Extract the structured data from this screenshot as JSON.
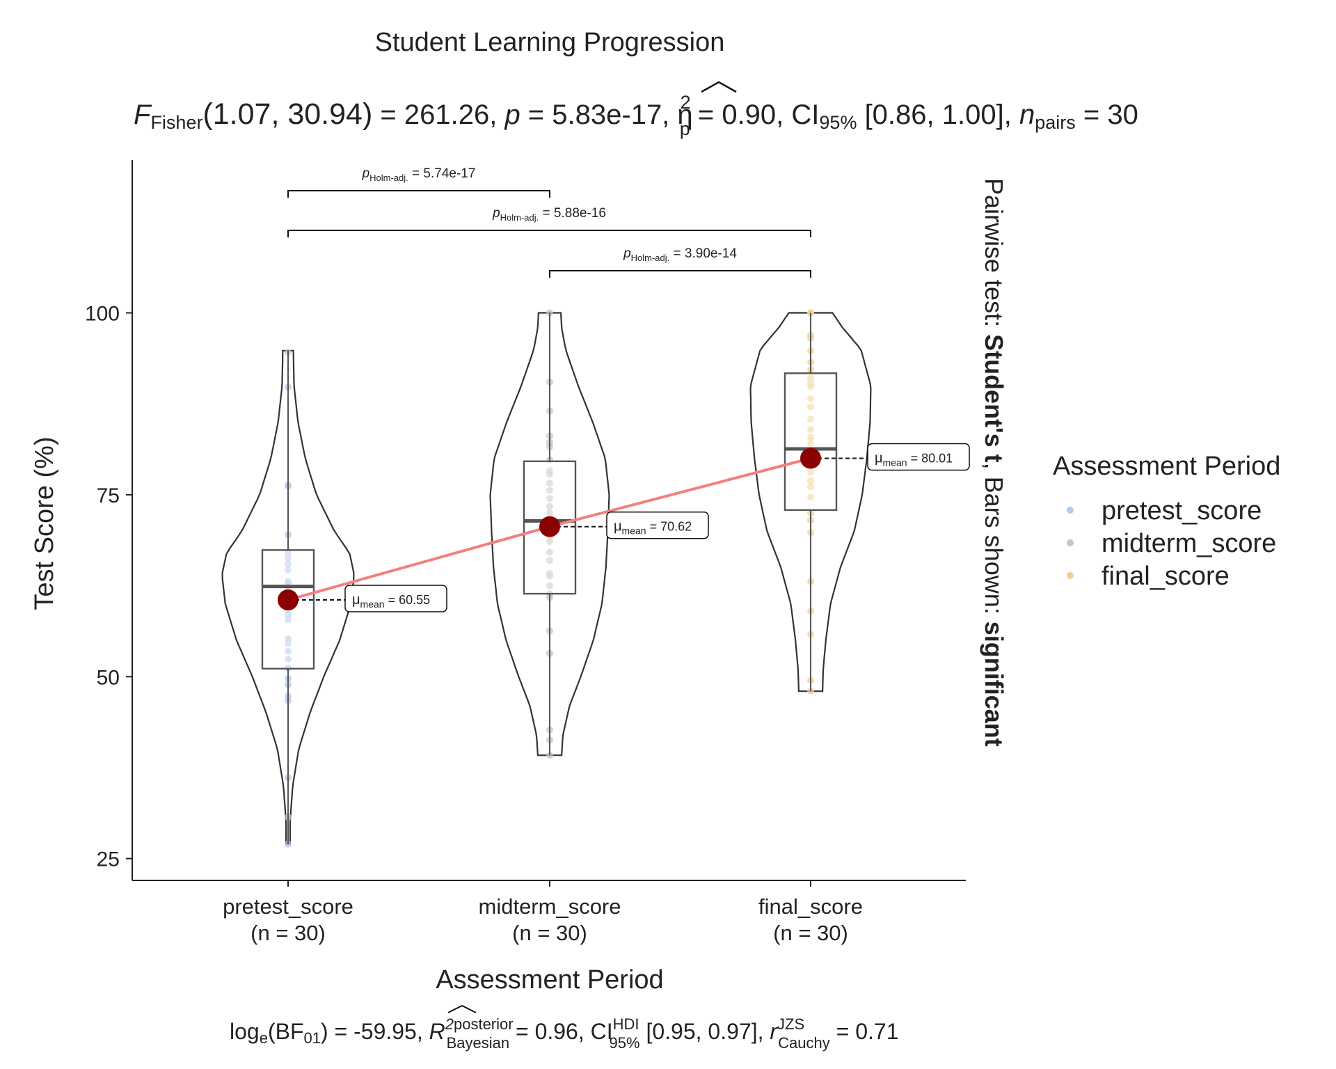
{
  "chart_data": {
    "type": "violin-box",
    "title": "Student Learning Progression",
    "subtitle": {
      "stat_label": "F",
      "stat_sub": "Fisher",
      "df": "(1.07, 30.94)",
      "stat_value": " = 261.26, ",
      "p_label": "p",
      "p_value": " = 5.83e-17, ",
      "eta_label": "η",
      "eta_sup": "2",
      "eta_sub": "p",
      "eta_value": " = 0.90, CI",
      "ci_sub": "95%",
      "ci_value": " [0.86, 1.00], ",
      "n_label": "n",
      "n_sub": "pairs",
      "n_value": " = 30"
    },
    "caption": {
      "log_label": "log",
      "log_sub": "e",
      "bf_text": "(BF",
      "bf_sub": "01",
      "bf_value": ") = -59.95, ",
      "r2_label": "R",
      "r2_sup": "2",
      "r2_sup_text": "posterior",
      "r2_sub": "Bayesian",
      "r2_value": " = 0.96, CI",
      "ci_sup": "HDI",
      "ci_sub": "95%",
      "ci_value": " [0.95, 0.97], ",
      "r_label": "r",
      "r_sup": "JZS",
      "r_sub": "Cauchy",
      "r_value": " = 0.71"
    },
    "xlabel": "Assessment Period",
    "ylabel": "Test Score (%)",
    "ylim": [
      22,
      121
    ],
    "yticks": [
      25,
      50,
      75,
      100
    ],
    "right_label": {
      "part1": "Pairwise test: ",
      "part2": "Student's t",
      "part3": ", Bars shown: ",
      "part4": "significant"
    },
    "legend": {
      "title": "Assessment Period",
      "position": "right",
      "entries": [
        "pretest_score",
        "midterm_score",
        "final_score"
      ]
    },
    "categories": [
      {
        "name": "pretest_score",
        "n_label": "(n = 30)",
        "color": "#b3c8ee",
        "mean": 60.55,
        "mean_label": "60.55",
        "box": {
          "q1": 51.1,
          "median": 62.4,
          "q3": 67.4,
          "lower": 27,
          "upper": 94.8
        },
        "violin": {
          "min": 27,
          "max": 94.8,
          "width_profile": [
            [
              27,
              0.03
            ],
            [
              30,
              0.03
            ],
            [
              35,
              0.07
            ],
            [
              40,
              0.16
            ],
            [
              45,
              0.33
            ],
            [
              50,
              0.54
            ],
            [
              55,
              0.78
            ],
            [
              60,
              0.95
            ],
            [
              64,
              1.0
            ],
            [
              67,
              0.93
            ],
            [
              70,
              0.7
            ],
            [
              75,
              0.43
            ],
            [
              80,
              0.26
            ],
            [
              85,
              0.15
            ],
            [
              90,
              0.09
            ],
            [
              94.8,
              0.08
            ]
          ]
        },
        "points": [
          27,
          30.7,
          36.1,
          46.7,
          47.3,
          49.7,
          51.2,
          52.4,
          53.5,
          55.2,
          57.8,
          59.1,
          60.3,
          60.8,
          61.8,
          62.3,
          63.1,
          64.7,
          66.3,
          67.1,
          69.5,
          76.2,
          76.3,
          89.8,
          94.6,
          62.8,
          58.5,
          54.6,
          48.9,
          65.5
        ]
      },
      {
        "name": "midterm_score",
        "n_label": "(n = 30)",
        "color": "#c4c4c4",
        "mean": 70.62,
        "mean_label": "70.62",
        "box": {
          "q1": 61.4,
          "median": 71.4,
          "q3": 79.6,
          "lower": 39.2,
          "upper": 100
        },
        "violin": {
          "min": 39.2,
          "max": 100,
          "width_profile": [
            [
              39.2,
              0.18
            ],
            [
              42,
              0.2
            ],
            [
              46,
              0.3
            ],
            [
              50,
              0.47
            ],
            [
              55,
              0.66
            ],
            [
              60,
              0.79
            ],
            [
              65,
              0.85
            ],
            [
              70,
              0.88
            ],
            [
              75,
              0.9
            ],
            [
              80,
              0.84
            ],
            [
              85,
              0.65
            ],
            [
              90,
              0.43
            ],
            [
              95,
              0.24
            ],
            [
              98,
              0.18
            ],
            [
              100,
              0.17
            ]
          ]
        },
        "points": [
          39.2,
          41.3,
          42.7,
          53.2,
          56.3,
          60.9,
          61.4,
          62.5,
          63.8,
          64.2,
          67.1,
          68.6,
          69.3,
          70.2,
          71.3,
          72.5,
          74.5,
          75.6,
          77.8,
          78.3,
          79.8,
          81.6,
          82.2,
          83.1,
          86.5,
          90.5,
          100,
          66.0,
          73.4,
          76.6
        ]
      },
      {
        "name": "final_score",
        "n_label": "(n = 30)",
        "color": "#f3cf8d",
        "mean": 80.01,
        "mean_label": "80.01",
        "box": {
          "q1": 72.9,
          "median": 81.3,
          "q3": 91.7,
          "lower": 48,
          "upper": 100
        },
        "violin": {
          "min": 48,
          "max": 100,
          "width_profile": [
            [
              48,
              0.18
            ],
            [
              51,
              0.19
            ],
            [
              55,
              0.23
            ],
            [
              60,
              0.3
            ],
            [
              65,
              0.45
            ],
            [
              70,
              0.66
            ],
            [
              75,
              0.78
            ],
            [
              80,
              0.85
            ],
            [
              85,
              0.9
            ],
            [
              90,
              0.91
            ],
            [
              95,
              0.76
            ],
            [
              98,
              0.48
            ],
            [
              100,
              0.33
            ]
          ]
        },
        "points": [
          48,
          49.5,
          55.8,
          59,
          63.1,
          69.8,
          71.5,
          72.5,
          74.7,
          76.1,
          76.9,
          78.1,
          80.2,
          82.9,
          85.4,
          88.2,
          89.9,
          91,
          92.2,
          93.2,
          96.5,
          96.9,
          100,
          100,
          100,
          82.1,
          84.0,
          87.1,
          90.3,
          94.8
        ]
      }
    ],
    "pairwise": [
      {
        "from": 0,
        "to": 1,
        "label": "p",
        "sub": "Holm-adj.",
        "value": " = 5.74e-17"
      },
      {
        "from": 0,
        "to": 2,
        "label": "p",
        "sub": "Holm-adj.",
        "value": " = 5.88e-16"
      },
      {
        "from": 1,
        "to": 2,
        "label": "p",
        "sub": "Holm-adj.",
        "value": " = 3.90e-14"
      }
    ],
    "mean_prefix": "μ",
    "mean_sub": "mean",
    "mean_eq": " = ",
    "colors": {
      "mean_dot": "#8b0000",
      "mean_line": "#f28080",
      "axis": "#222222",
      "violin_stroke": "#333333",
      "box_stroke": "#555555",
      "median": "#555555"
    }
  }
}
